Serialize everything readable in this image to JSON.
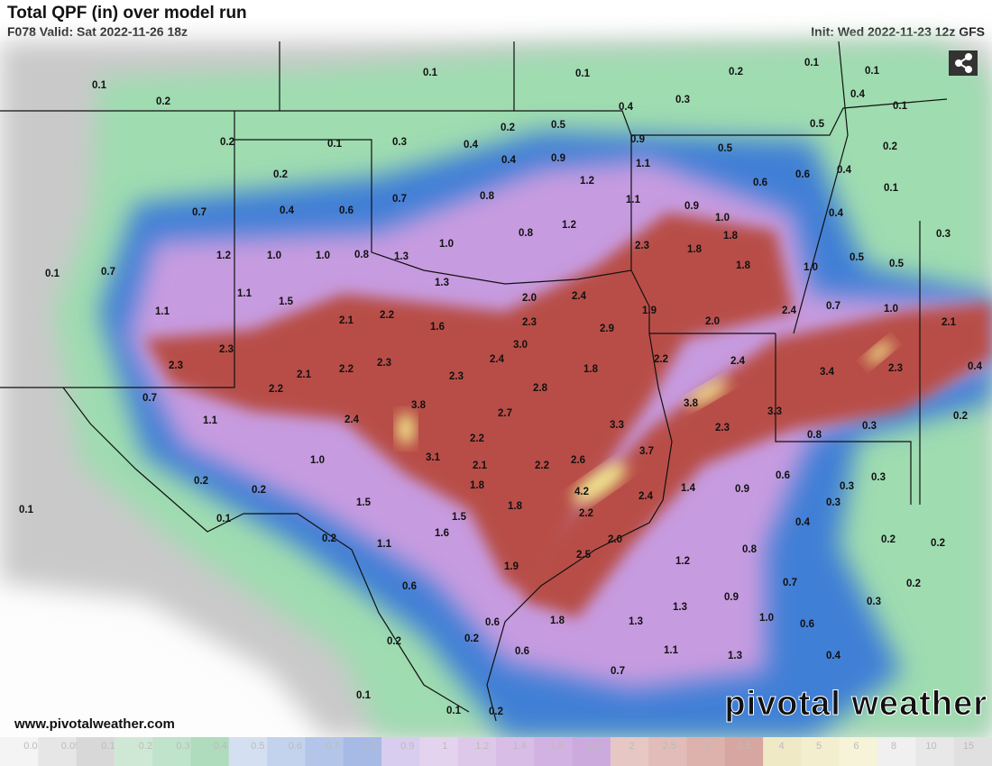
{
  "header": {
    "title": "Total QPF (in) over model run",
    "valid": "F078 Valid: Sat 2022-11-26 18z",
    "init": "Init: Wed 2022-11-23 12z GFS"
  },
  "map": {
    "labels": [
      "0.1",
      "0.1",
      "0.2",
      "0.1",
      "0.1",
      "0.1",
      "0.2",
      "0.3",
      "0.4",
      "0.4",
      "0.1",
      "0.2",
      "0.5",
      "0.5",
      "0.2",
      "0.1",
      "0.3",
      "0.4",
      "0.9",
      "0.5",
      "0.2",
      "0.4",
      "0.9",
      "1.1",
      "0.2",
      "0.6",
      "0.4",
      "1.2",
      "0.6",
      "0.1",
      "0.7",
      "0.8",
      "1.1",
      "0.9",
      "0.7",
      "0.4",
      "0.6",
      "1.0",
      "0.4",
      "1.2",
      "0.8",
      "0.3",
      "1.0",
      "2.3",
      "1.8",
      "1.8",
      "1.2",
      "1.0",
      "1.0",
      "0.8",
      "1.3",
      "0.5",
      "0.5",
      "1.8",
      "1.0",
      "0.1",
      "0.7",
      "1.3",
      "1.1",
      "1.5",
      "2.0",
      "2.4",
      "1.1",
      "1.9",
      "2.4",
      "0.7",
      "1.0",
      "2.1",
      "2.2",
      "2.3",
      "2.0",
      "2.1",
      "1.6",
      "2.9",
      "3.0",
      "2.3",
      "2.4",
      "2.2",
      "2.4",
      "2.3",
      "2.1",
      "2.2",
      "2.3",
      "1.8",
      "3.4",
      "2.3",
      "0.4",
      "2.3",
      "2.8",
      "2.2",
      "0.7",
      "3.8",
      "3.8",
      "3.3",
      "2.7",
      "2.4",
      "1.1",
      "0.3",
      "0.2",
      "3.3",
      "2.3",
      "0.8",
      "2.2",
      "3.1",
      "3.7",
      "1.0",
      "2.1",
      "2.2",
      "2.6",
      "0.6",
      "0.3",
      "0.3",
      "0.2",
      "1.8",
      "1.4",
      "0.9",
      "4.2",
      "2.4",
      "0.2",
      "0.3",
      "1.5",
      "1.8",
      "0.1",
      "2.2",
      "1.5",
      "0.1",
      "0.4",
      "1.6",
      "2.0",
      "0.2",
      "0.2",
      "0.2",
      "1.1",
      "0.8",
      "2.5",
      "1.2",
      "1.9",
      "0.7",
      "0.2",
      "0.6",
      "0.9",
      "0.3",
      "1.3",
      "1.0",
      "0.6",
      "0.6",
      "1.8",
      "1.3",
      "0.2",
      "0.2",
      "0.6",
      "1.1",
      "1.3",
      "0.4",
      "0.7",
      "0.1",
      "0.1",
      "0.2"
    ]
  },
  "colorbar": {
    "labels": [
      "0.01",
      "0.05",
      "0.1",
      "0.2",
      "0.3",
      "0.4",
      "0.5",
      "0.6",
      "0.7",
      "0.8",
      "0.9",
      "1",
      "1.2",
      "1.4",
      "1.6",
      "1.8",
      "2",
      "2.5",
      "3",
      "3.5",
      "4",
      "5",
      "6",
      "8",
      "10",
      "15"
    ]
  },
  "footer": {
    "url": "www.pivotalweather.com",
    "brand": "pivotal weather"
  }
}
